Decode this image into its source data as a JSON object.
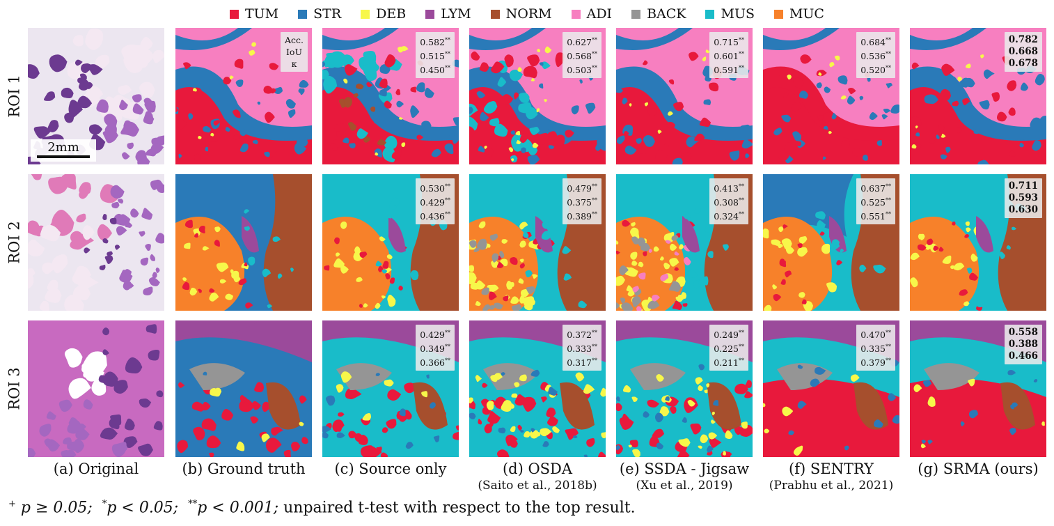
{
  "legend": [
    {
      "label": "TUM",
      "color": "#e8193c"
    },
    {
      "label": "STR",
      "color": "#2a7ab8"
    },
    {
      "label": "DEB",
      "color": "#f7f74a"
    },
    {
      "label": "LYM",
      "color": "#9b4a9b"
    },
    {
      "label": "NORM",
      "color": "#a64f2d"
    },
    {
      "label": "ADI",
      "color": "#f77fc0"
    },
    {
      "label": "BACK",
      "color": "#959595"
    },
    {
      "label": "MUS",
      "color": "#19bcc9"
    },
    {
      "label": "MUC",
      "color": "#f7812a"
    }
  ],
  "rows": [
    {
      "label": "ROI 1"
    },
    {
      "label": "ROI 2"
    },
    {
      "label": "ROI 3"
    }
  ],
  "scale_bar": "2mm",
  "metric_header": [
    "Acc.",
    "IoU",
    "κ"
  ],
  "metrics": [
    [
      [
        "0.582",
        "0.515",
        "0.450"
      ],
      [
        "0.627",
        "0.568",
        "0.503"
      ],
      [
        "0.715",
        "0.601",
        "0.591"
      ],
      [
        "0.684",
        "0.536",
        "0.520"
      ],
      [
        "0.782",
        "0.668",
        "0.678"
      ]
    ],
    [
      [
        "0.530",
        "0.429",
        "0.436"
      ],
      [
        "0.479",
        "0.375",
        "0.389"
      ],
      [
        "0.413",
        "0.308",
        "0.324"
      ],
      [
        "0.637",
        "0.525",
        "0.551"
      ],
      [
        "0.711",
        "0.593",
        "0.630"
      ]
    ],
    [
      [
        "0.429",
        "0.349",
        "0.366"
      ],
      [
        "0.372",
        "0.333",
        "0.317"
      ],
      [
        "0.249",
        "0.225",
        "0.211"
      ],
      [
        "0.470",
        "0.335",
        "0.379"
      ],
      [
        "0.558",
        "0.388",
        "0.466"
      ]
    ]
  ],
  "significance_marker": "**",
  "captions": [
    {
      "line1": "(a) Original",
      "line2": ""
    },
    {
      "line1": "(b) Ground truth",
      "line2": ""
    },
    {
      "line1": "(c) Source only",
      "line2": ""
    },
    {
      "line1": "(d) OSDA",
      "line2": "(Saito et al., 2018b)"
    },
    {
      "line1": "(e) SSDA - Jigsaw",
      "line2": "(Xu et al., 2019)"
    },
    {
      "line1": "(f) SENTRY",
      "line2": "(Prabhu et al., 2021)"
    },
    {
      "line1": "(g) SRMA (ours)",
      "line2": ""
    }
  ],
  "footnote": {
    "p1": "p ≥ 0.05;",
    "p2": "p < 0.05;",
    "p3": "p < 0.001;",
    "text": "unpaired t-test with respect to the top result."
  }
}
